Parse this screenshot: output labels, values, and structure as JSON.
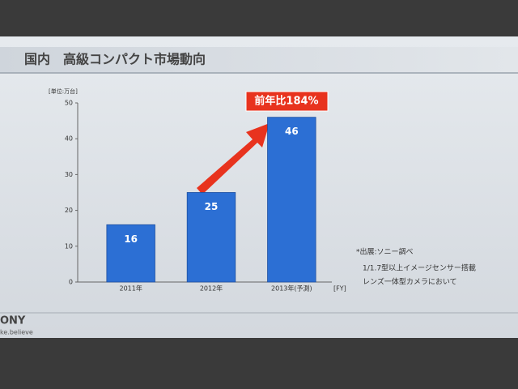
{
  "chart_data": {
    "type": "bar",
    "title": "国内　高級コンパクト市場動向",
    "unit_label": "[単位:万台]",
    "x_unit_label": "[FY]",
    "categories": [
      "2011年",
      "2012年",
      "2013年(予測)"
    ],
    "values": [
      16,
      25,
      46
    ],
    "color": "#2c6fd4",
    "ylim": [
      0,
      50
    ],
    "yticks": [
      0,
      10,
      20,
      30,
      40,
      50
    ],
    "grid": false,
    "annotation": "前年比184%",
    "notes": [
      "*出展:ソニー調べ",
      "1/1.7型以上イメージセンサー搭載",
      "レンズ一体型カメラにおいて"
    ],
    "logo": "ONY",
    "slogan": "ke.believe"
  }
}
